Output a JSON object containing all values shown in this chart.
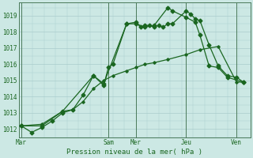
{
  "xlabel": "Pression niveau de la mer( hPa )",
  "bg_color": "#cce8e4",
  "grid_color": "#aacccc",
  "line_color": "#1a6620",
  "line_color2": "#2a8830",
  "ylim": [
    1011.5,
    1019.8
  ],
  "yticks": [
    1012,
    1013,
    1014,
    1015,
    1016,
    1017,
    1018,
    1019
  ],
  "day_labels": [
    "Mar",
    "Sam",
    "Mer",
    "Jeu",
    "Ven"
  ],
  "day_positions": [
    0.0,
    3.8,
    5.0,
    7.2,
    9.4
  ],
  "xlim": [
    -0.1,
    10.0
  ],
  "s1_x": [
    0.0,
    0.45,
    0.9,
    1.35,
    1.8,
    2.25,
    2.7,
    3.15,
    3.6,
    3.8,
    4.0,
    4.6,
    5.0,
    5.2,
    5.4,
    5.6,
    5.8,
    6.0,
    6.2,
    6.4,
    6.6,
    7.2,
    7.4,
    7.6,
    7.8,
    8.2,
    8.6,
    9.0,
    9.4,
    9.7
  ],
  "s1_y": [
    1012.2,
    1011.8,
    1012.1,
    1012.5,
    1013.0,
    1013.2,
    1014.1,
    1015.3,
    1014.7,
    1015.8,
    1016.0,
    1018.5,
    1018.6,
    1018.3,
    1018.4,
    1018.4,
    1018.3,
    1018.4,
    1018.3,
    1018.5,
    1018.5,
    1019.3,
    1019.1,
    1018.8,
    1018.7,
    1017.2,
    1015.9,
    1015.3,
    1015.2,
    1014.9
  ],
  "s2_x": [
    0.0,
    0.9,
    1.8,
    3.15,
    3.6,
    4.6,
    5.0,
    5.4,
    5.8,
    6.4,
    6.6,
    7.2,
    7.6,
    7.8,
    8.2,
    8.6,
    9.0,
    9.7
  ],
  "s2_y": [
    1012.2,
    1012.2,
    1013.1,
    1015.3,
    1014.8,
    1018.5,
    1018.5,
    1018.3,
    1018.4,
    1019.5,
    1019.3,
    1018.9,
    1018.6,
    1017.8,
    1015.9,
    1015.8,
    1015.2,
    1014.9
  ],
  "s3_x": [
    0.0,
    0.9,
    1.8,
    2.25,
    2.7,
    3.15,
    3.6,
    4.0,
    4.6,
    5.0,
    5.4,
    5.8,
    6.4,
    7.2,
    7.8,
    8.6,
    9.4,
    9.7
  ],
  "s3_y": [
    1012.2,
    1012.3,
    1013.1,
    1013.2,
    1013.7,
    1014.5,
    1015.0,
    1015.3,
    1015.6,
    1015.8,
    1016.0,
    1016.1,
    1016.3,
    1016.6,
    1016.9,
    1017.1,
    1014.9,
    1014.9
  ]
}
